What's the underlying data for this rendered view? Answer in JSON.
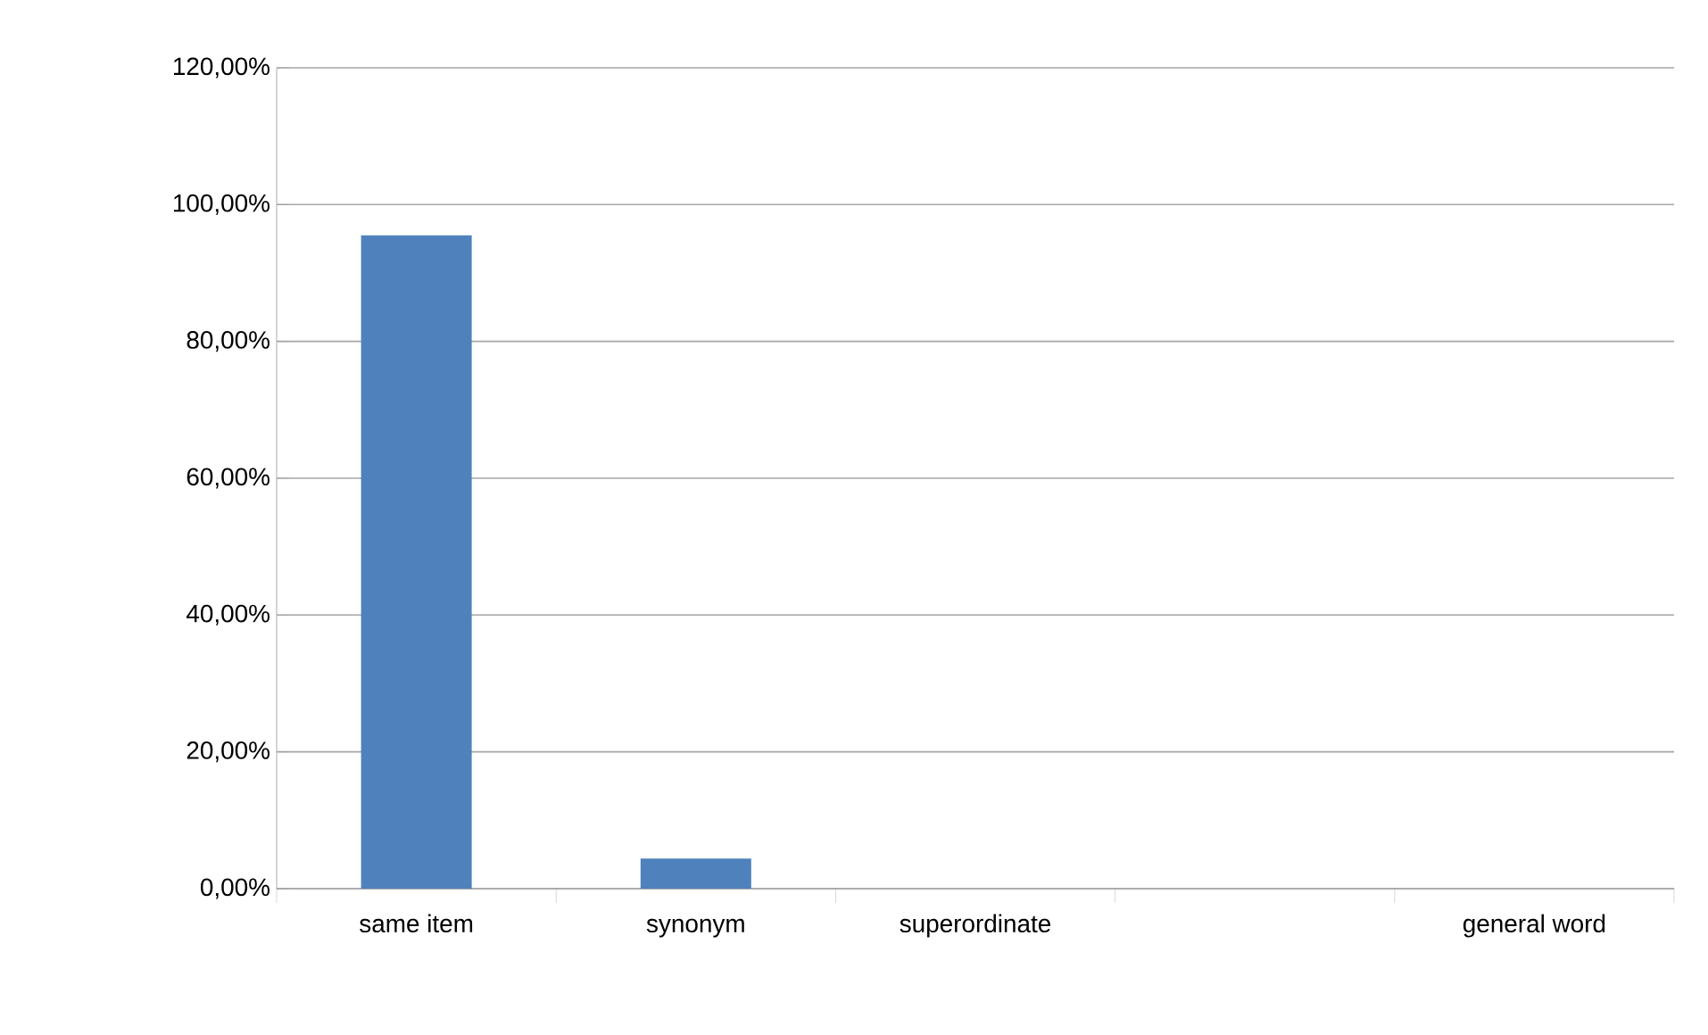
{
  "chart_data": {
    "type": "bar",
    "categories": [
      "same item",
      "synonym",
      "superordinate",
      null,
      "general word"
    ],
    "values": [
      95.5,
      4.4,
      0,
      0,
      0
    ],
    "color": "#4f81bd",
    "ylim": [
      0,
      120
    ],
    "yticks": [
      {
        "value": 0,
        "label": "0,00%"
      },
      {
        "value": 20,
        "label": "20,00%"
      },
      {
        "value": 40,
        "label": "40,00%"
      },
      {
        "value": 60,
        "label": "60,00%"
      },
      {
        "value": 80,
        "label": "80,00%"
      },
      {
        "value": 100,
        "label": "100,00%"
      },
      {
        "value": 120,
        "label": "120,00%"
      }
    ],
    "grid": "y"
  }
}
